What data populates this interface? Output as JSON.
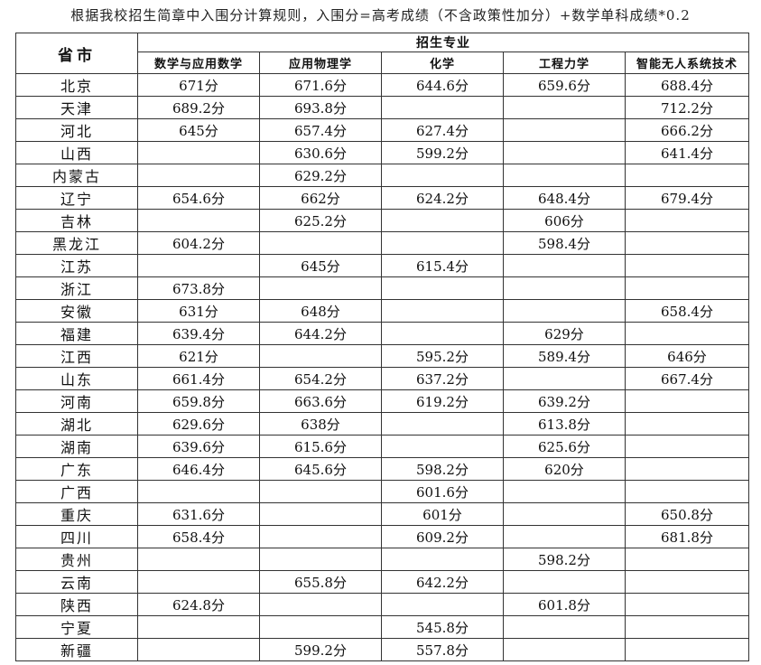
{
  "title": "根据我校招生简章中入围分计算规则，入围分=高考成绩（不含政策性加分）+数学单科成绩*0.2",
  "table": {
    "province_header": "省市",
    "group_header": "招生专业",
    "majors": [
      "数学与应用数学",
      "应用物理学",
      "化学",
      "工程力学",
      "智能无人系统技术"
    ],
    "rows": [
      {
        "province": "北京",
        "scores": [
          "671分",
          "671.6分",
          "644.6分",
          "659.6分",
          "688.4分"
        ]
      },
      {
        "province": "天津",
        "scores": [
          "689.2分",
          "693.8分",
          "",
          "",
          "712.2分"
        ]
      },
      {
        "province": "河北",
        "scores": [
          "645分",
          "657.4分",
          "627.4分",
          "",
          "666.2分"
        ]
      },
      {
        "province": "山西",
        "scores": [
          "",
          "630.6分",
          "599.2分",
          "",
          "641.4分"
        ]
      },
      {
        "province": "内蒙古",
        "scores": [
          "",
          "629.2分",
          "",
          "",
          ""
        ]
      },
      {
        "province": "辽宁",
        "scores": [
          "654.6分",
          "662分",
          "624.2分",
          "648.4分",
          "679.4分"
        ]
      },
      {
        "province": "吉林",
        "scores": [
          "",
          "625.2分",
          "",
          "606分",
          ""
        ]
      },
      {
        "province": "黑龙江",
        "scores": [
          "604.2分",
          "",
          "",
          "598.4分",
          ""
        ]
      },
      {
        "province": "江苏",
        "scores": [
          "",
          "645分",
          "615.4分",
          "",
          ""
        ]
      },
      {
        "province": "浙江",
        "scores": [
          "673.8分",
          "",
          "",
          "",
          ""
        ]
      },
      {
        "province": "安徽",
        "scores": [
          "631分",
          "648分",
          "",
          "",
          "658.4分"
        ]
      },
      {
        "province": "福建",
        "scores": [
          "639.4分",
          "644.2分",
          "",
          "629分",
          ""
        ]
      },
      {
        "province": "江西",
        "scores": [
          "621分",
          "",
          "595.2分",
          "589.4分",
          "646分"
        ]
      },
      {
        "province": "山东",
        "scores": [
          "661.4分",
          "654.2分",
          "637.2分",
          "",
          "667.4分"
        ]
      },
      {
        "province": "河南",
        "scores": [
          "659.8分",
          "663.6分",
          "619.2分",
          "639.2分",
          ""
        ]
      },
      {
        "province": "湖北",
        "scores": [
          "629.6分",
          "638分",
          "",
          "613.8分",
          ""
        ]
      },
      {
        "province": "湖南",
        "scores": [
          "639.6分",
          "615.6分",
          "",
          "625.6分",
          ""
        ]
      },
      {
        "province": "广东",
        "scores": [
          "646.4分",
          "645.6分",
          "598.2分",
          "620分",
          ""
        ]
      },
      {
        "province": "广西",
        "scores": [
          "",
          "",
          "601.6分",
          "",
          ""
        ]
      },
      {
        "province": "重庆",
        "scores": [
          "631.6分",
          "",
          "601分",
          "",
          "650.8分"
        ]
      },
      {
        "province": "四川",
        "scores": [
          "658.4分",
          "",
          "609.2分",
          "",
          "681.8分"
        ]
      },
      {
        "province": "贵州",
        "scores": [
          "",
          "",
          "",
          "598.2分",
          ""
        ]
      },
      {
        "province": "云南",
        "scores": [
          "",
          "655.8分",
          "642.2分",
          "",
          ""
        ]
      },
      {
        "province": "陕西",
        "scores": [
          "624.8分",
          "",
          "",
          "601.8分",
          ""
        ]
      },
      {
        "province": "宁夏",
        "scores": [
          "",
          "",
          "545.8分",
          "",
          ""
        ]
      },
      {
        "province": "新疆",
        "scores": [
          "",
          "599.2分",
          "557.8分",
          "",
          ""
        ]
      }
    ]
  }
}
